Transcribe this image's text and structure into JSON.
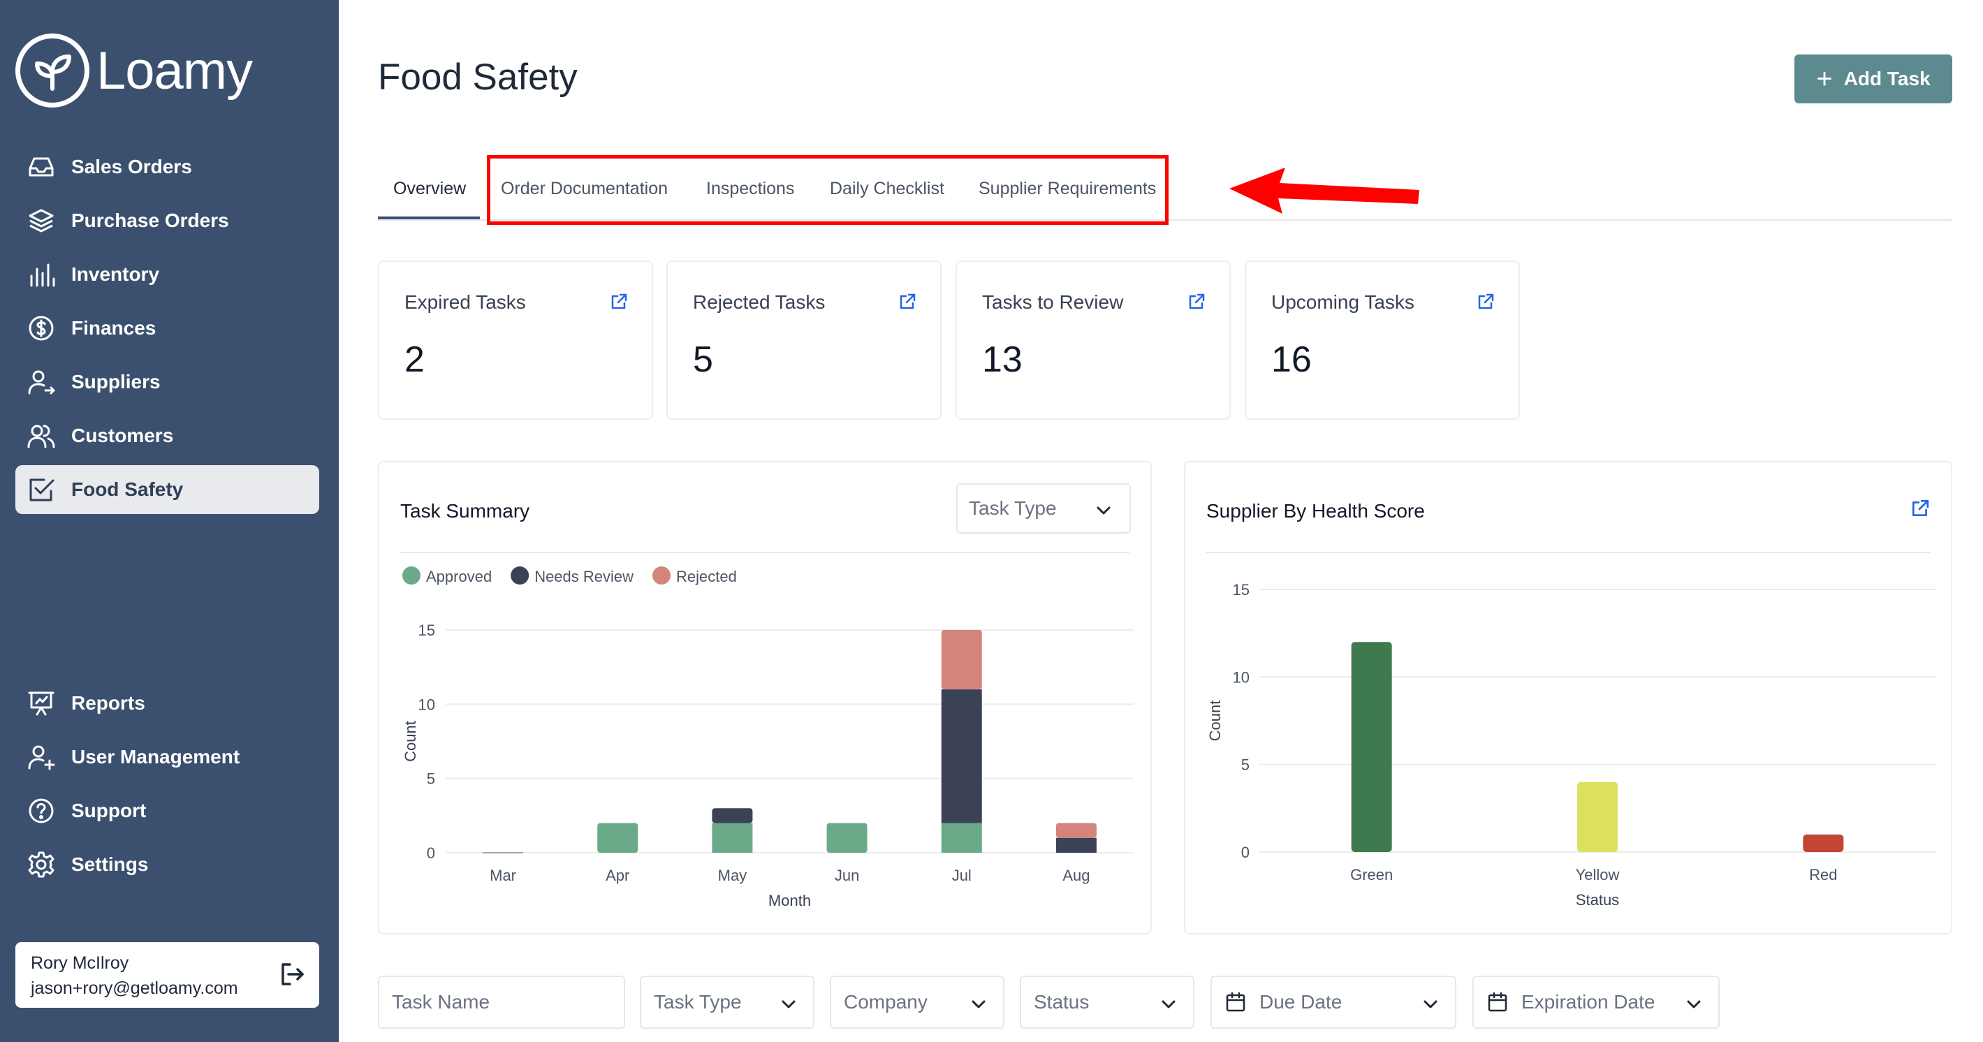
{
  "brand": {
    "name": "Loamy"
  },
  "sidebar": {
    "items": [
      {
        "label": "Sales Orders",
        "icon": "inbox-icon"
      },
      {
        "label": "Purchase Orders",
        "icon": "layers-icon"
      },
      {
        "label": "Inventory",
        "icon": "bars-icon"
      },
      {
        "label": "Finances",
        "icon": "dollar-icon"
      },
      {
        "label": "Suppliers",
        "icon": "user-arrow-icon"
      },
      {
        "label": "Customers",
        "icon": "users-icon"
      },
      {
        "label": "Food Safety",
        "icon": "checkbox-icon",
        "active": true
      }
    ],
    "bottom_items": [
      {
        "label": "Reports",
        "icon": "presentation-icon"
      },
      {
        "label": "User Management",
        "icon": "user-plus-icon"
      },
      {
        "label": "Support",
        "icon": "help-icon"
      },
      {
        "label": "Settings",
        "icon": "gear-icon"
      }
    ],
    "user": {
      "name": "Rory McIlroy",
      "email": "jason+rory@getloamy.com"
    }
  },
  "header": {
    "title": "Food Safety",
    "add_button": "Add Task"
  },
  "tabs": [
    {
      "label": "Overview",
      "active": true
    },
    {
      "label": "Order Documentation"
    },
    {
      "label": "Inspections"
    },
    {
      "label": "Daily Checklist"
    },
    {
      "label": "Supplier Requirements"
    }
  ],
  "stats": [
    {
      "label": "Expired Tasks",
      "value": "2"
    },
    {
      "label": "Rejected Tasks",
      "value": "5"
    },
    {
      "label": "Tasks to Review",
      "value": "13"
    },
    {
      "label": "Upcoming Tasks",
      "value": "16"
    }
  ],
  "task_summary": {
    "title": "Task Summary",
    "select_value": "Task Type"
  },
  "supplier_health": {
    "title": "Supplier By Health Score"
  },
  "chart_data": [
    {
      "type": "bar",
      "stacked": true,
      "categories": [
        "Mar",
        "Apr",
        "May",
        "Jun",
        "Jul",
        "Aug"
      ],
      "series": [
        {
          "name": "Approved",
          "color": "#6aaa89",
          "values": [
            0,
            2,
            2,
            2,
            2,
            0
          ]
        },
        {
          "name": "Needs Review",
          "color": "#3b4256",
          "values": [
            0,
            0,
            1,
            0,
            9,
            1
          ]
        },
        {
          "name": "Rejected",
          "color": "#d4847a",
          "values": [
            0,
            0,
            0,
            0,
            4,
            1
          ]
        }
      ],
      "xlabel": "Month",
      "ylabel": "Count",
      "ylim": [
        0,
        15
      ],
      "yticks": [
        0,
        5,
        10,
        15
      ],
      "legend": "top-left",
      "grid": true
    },
    {
      "type": "bar",
      "categories": [
        "Green",
        "Yellow",
        "Red"
      ],
      "values": [
        12,
        4,
        1
      ],
      "colors": [
        "#3f7a4f",
        "#dce05f",
        "#c44535"
      ],
      "xlabel": "Status",
      "ylabel": "Count",
      "ylim": [
        0,
        15
      ],
      "yticks": [
        0,
        5,
        10,
        15
      ],
      "grid": true
    }
  ],
  "filters": [
    {
      "label": "Task Name",
      "kind": "input"
    },
    {
      "label": "Task Type",
      "kind": "select"
    },
    {
      "label": "Company",
      "kind": "select"
    },
    {
      "label": "Status",
      "kind": "select"
    },
    {
      "label": "Due Date",
      "kind": "date"
    },
    {
      "label": "Expiration Date",
      "kind": "date"
    }
  ]
}
